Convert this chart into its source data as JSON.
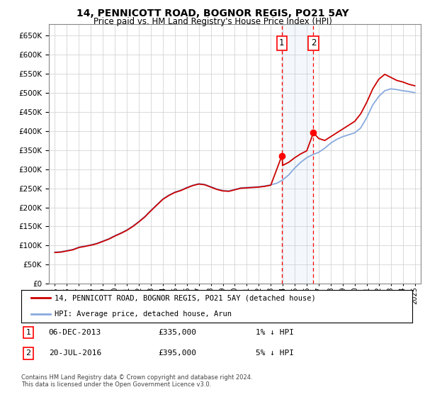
{
  "title": "14, PENNICOTT ROAD, BOGNOR REGIS, PO21 5AY",
  "subtitle": "Price paid vs. HM Land Registry's House Price Index (HPI)",
  "legend_line1": "14, PENNICOTT ROAD, BOGNOR REGIS, PO21 5AY (detached house)",
  "legend_line2": "HPI: Average price, detached house, Arun",
  "sale1_date": "06-DEC-2013",
  "sale1_price": 335000,
  "sale1_label": "1% ↓ HPI",
  "sale2_date": "20-JUL-2016",
  "sale2_price": 395000,
  "sale2_label": "5% ↓ HPI",
  "footnote": "Contains HM Land Registry data © Crown copyright and database right 2024.\nThis data is licensed under the Open Government Licence v3.0.",
  "hpi_color": "#88aadd",
  "price_color": "#cc0000",
  "background_color": "#ffffff",
  "grid_color": "#cccccc",
  "ylim": [
    0,
    680000
  ],
  "yticks": [
    0,
    50000,
    100000,
    150000,
    200000,
    250000,
    300000,
    350000,
    400000,
    450000,
    500000,
    550000,
    600000,
    650000
  ],
  "hpi_years": [
    1995,
    1995.5,
    1996,
    1996.5,
    1997,
    1997.5,
    1998,
    1998.5,
    1999,
    1999.5,
    2000,
    2000.5,
    2001,
    2001.5,
    2002,
    2002.5,
    2003,
    2003.5,
    2004,
    2004.5,
    2005,
    2005.5,
    2006,
    2006.5,
    2007,
    2007.5,
    2008,
    2008.5,
    2009,
    2009.5,
    2010,
    2010.5,
    2011,
    2011.5,
    2012,
    2012.5,
    2013,
    2013.5,
    2014,
    2014.5,
    2015,
    2015.5,
    2016,
    2016.5,
    2017,
    2017.5,
    2018,
    2018.5,
    2019,
    2019.5,
    2020,
    2020.5,
    2021,
    2021.5,
    2022,
    2022.5,
    2023,
    2023.5,
    2024,
    2024.5,
    2025
  ],
  "hpi_values": [
    83000,
    84000,
    87000,
    90000,
    96000,
    99000,
    102000,
    106000,
    112000,
    118000,
    126000,
    133000,
    141000,
    151000,
    163000,
    176000,
    192000,
    207000,
    222000,
    232000,
    240000,
    245000,
    252000,
    258000,
    262000,
    260000,
    254000,
    248000,
    244000,
    243000,
    247000,
    251000,
    252000,
    253000,
    254000,
    256000,
    259000,
    263000,
    272000,
    285000,
    303000,
    318000,
    330000,
    338000,
    344000,
    355000,
    368000,
    378000,
    385000,
    390000,
    395000,
    408000,
    435000,
    468000,
    490000,
    505000,
    510000,
    508000,
    505000,
    503000,
    500000
  ],
  "price_years": [
    1995,
    1995.5,
    1996,
    1996.5,
    1997,
    1997.5,
    1998,
    1998.5,
    1999,
    1999.5,
    2000,
    2000.5,
    2001,
    2001.5,
    2002,
    2002.5,
    2003,
    2003.5,
    2004,
    2004.5,
    2005,
    2005.5,
    2006,
    2006.5,
    2007,
    2007.5,
    2008,
    2008.5,
    2009,
    2009.5,
    2010,
    2010.5,
    2011,
    2011.5,
    2012,
    2012.5,
    2013,
    2013.92,
    2014,
    2014.5,
    2015,
    2015.5,
    2016,
    2016.55,
    2017,
    2017.5,
    2018,
    2018.5,
    2019,
    2019.5,
    2020,
    2020.5,
    2021,
    2021.5,
    2022,
    2022.5,
    2023,
    2023.5,
    2024,
    2024.5,
    2025
  ],
  "price_values": [
    82000,
    83000,
    86000,
    89000,
    95000,
    98000,
    101000,
    105000,
    111000,
    117000,
    125000,
    132000,
    140000,
    150000,
    162000,
    175000,
    191000,
    206000,
    221000,
    231000,
    239000,
    244000,
    251000,
    257000,
    261000,
    259000,
    253000,
    247000,
    243000,
    242000,
    246000,
    250000,
    251000,
    252000,
    253000,
    255000,
    258000,
    335000,
    310000,
    318000,
    330000,
    340000,
    348000,
    395000,
    380000,
    375000,
    385000,
    395000,
    405000,
    415000,
    425000,
    445000,
    475000,
    510000,
    535000,
    548000,
    540000,
    532000,
    528000,
    522000,
    518000
  ],
  "sale1_x": 2013.92,
  "sale2_x": 2016.55,
  "xtick_years": [
    1995,
    1996,
    1997,
    1998,
    1999,
    2000,
    2001,
    2002,
    2003,
    2004,
    2005,
    2006,
    2007,
    2008,
    2009,
    2010,
    2011,
    2012,
    2013,
    2014,
    2015,
    2016,
    2017,
    2018,
    2019,
    2020,
    2021,
    2022,
    2023,
    2024,
    2025
  ]
}
